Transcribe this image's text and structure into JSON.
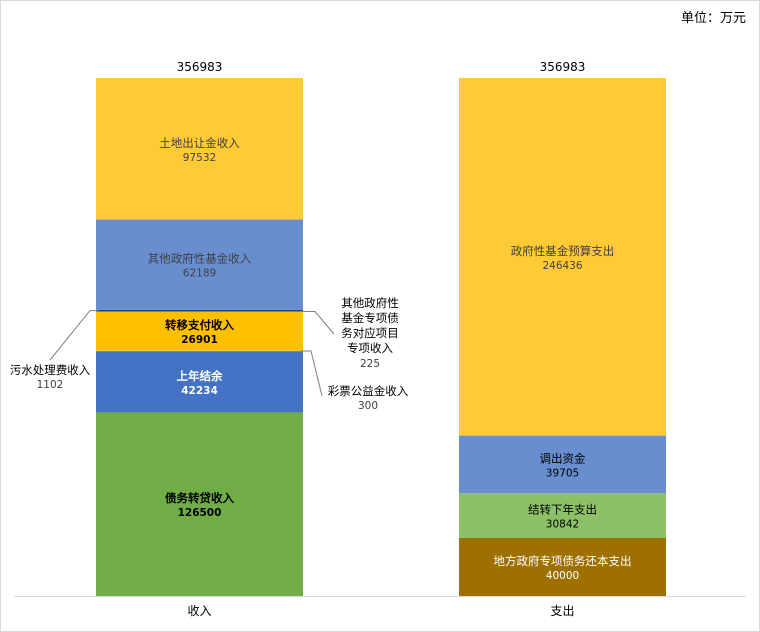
{
  "unit": "单位：万元",
  "chart_data": {
    "type": "bar",
    "stacked": true,
    "categories": [
      "收入",
      "支出"
    ],
    "ylim": [
      0,
      356983
    ],
    "totals": [
      "356983",
      "356983"
    ],
    "series": [
      {
        "stack": "收入",
        "name": "债务转贷收入",
        "value": 126500,
        "color": "#70ad47",
        "text_color": "#000000",
        "bold": true
      },
      {
        "stack": "收入",
        "name": "上年结余",
        "value": 42234,
        "color": "#4472c4",
        "text_color": "#ffffff",
        "bold": true
      },
      {
        "stack": "收入",
        "name": "彩票公益金收入",
        "value": 300,
        "color": "#a5a5a5",
        "label_mode": "callout"
      },
      {
        "stack": "收入",
        "name": "转移支付收入",
        "value": 26901,
        "color": "#ffc000",
        "text_color": "#000000",
        "bold": true
      },
      {
        "stack": "收入",
        "name": "其他政府性基金专项债务对应项目专项收入",
        "value": 225,
        "color": "#5b9bd5",
        "label_mode": "callout"
      },
      {
        "stack": "收入",
        "name": "污水处理费收入",
        "value": 1102,
        "color": "#264478",
        "label_mode": "callout"
      },
      {
        "stack": "收入",
        "name": "其他政府性基金收入",
        "value": 62189,
        "color": "#698ed0",
        "text_color": "#404040"
      },
      {
        "stack": "收入",
        "name": "土地出让金收入",
        "value": 97532,
        "color": "#ffca33",
        "text_color": "#404040"
      },
      {
        "stack": "支出",
        "name": "地方政府专项债务还本支出",
        "value": 40000,
        "color": "#9e7000",
        "text_color": "#ffffff"
      },
      {
        "stack": "支出",
        "name": "结转下年支出",
        "value": 30842,
        "color": "#8cc168",
        "text_color": "#000000"
      },
      {
        "stack": "支出",
        "name": "调出资金",
        "value": 39705,
        "color": "#698ed0",
        "text_color": "#000000"
      },
      {
        "stack": "支出",
        "name": "政府性基金预算支出",
        "value": 246436,
        "color": "#ffca33",
        "text_color": "#404040"
      }
    ],
    "callouts": {
      "其他政府性基金专项债务对应项目专项收入": {
        "lines": [
          "其他政府性",
          "基金专项债",
          "务对应项目",
          "专项收入"
        ],
        "value": "225"
      },
      "彩票公益金收入": {
        "lines": [
          "彩票公益金收入"
        ],
        "value": "300"
      },
      "污水处理费收入": {
        "lines": [
          "污水处理费收入"
        ],
        "value": "1102"
      }
    }
  }
}
